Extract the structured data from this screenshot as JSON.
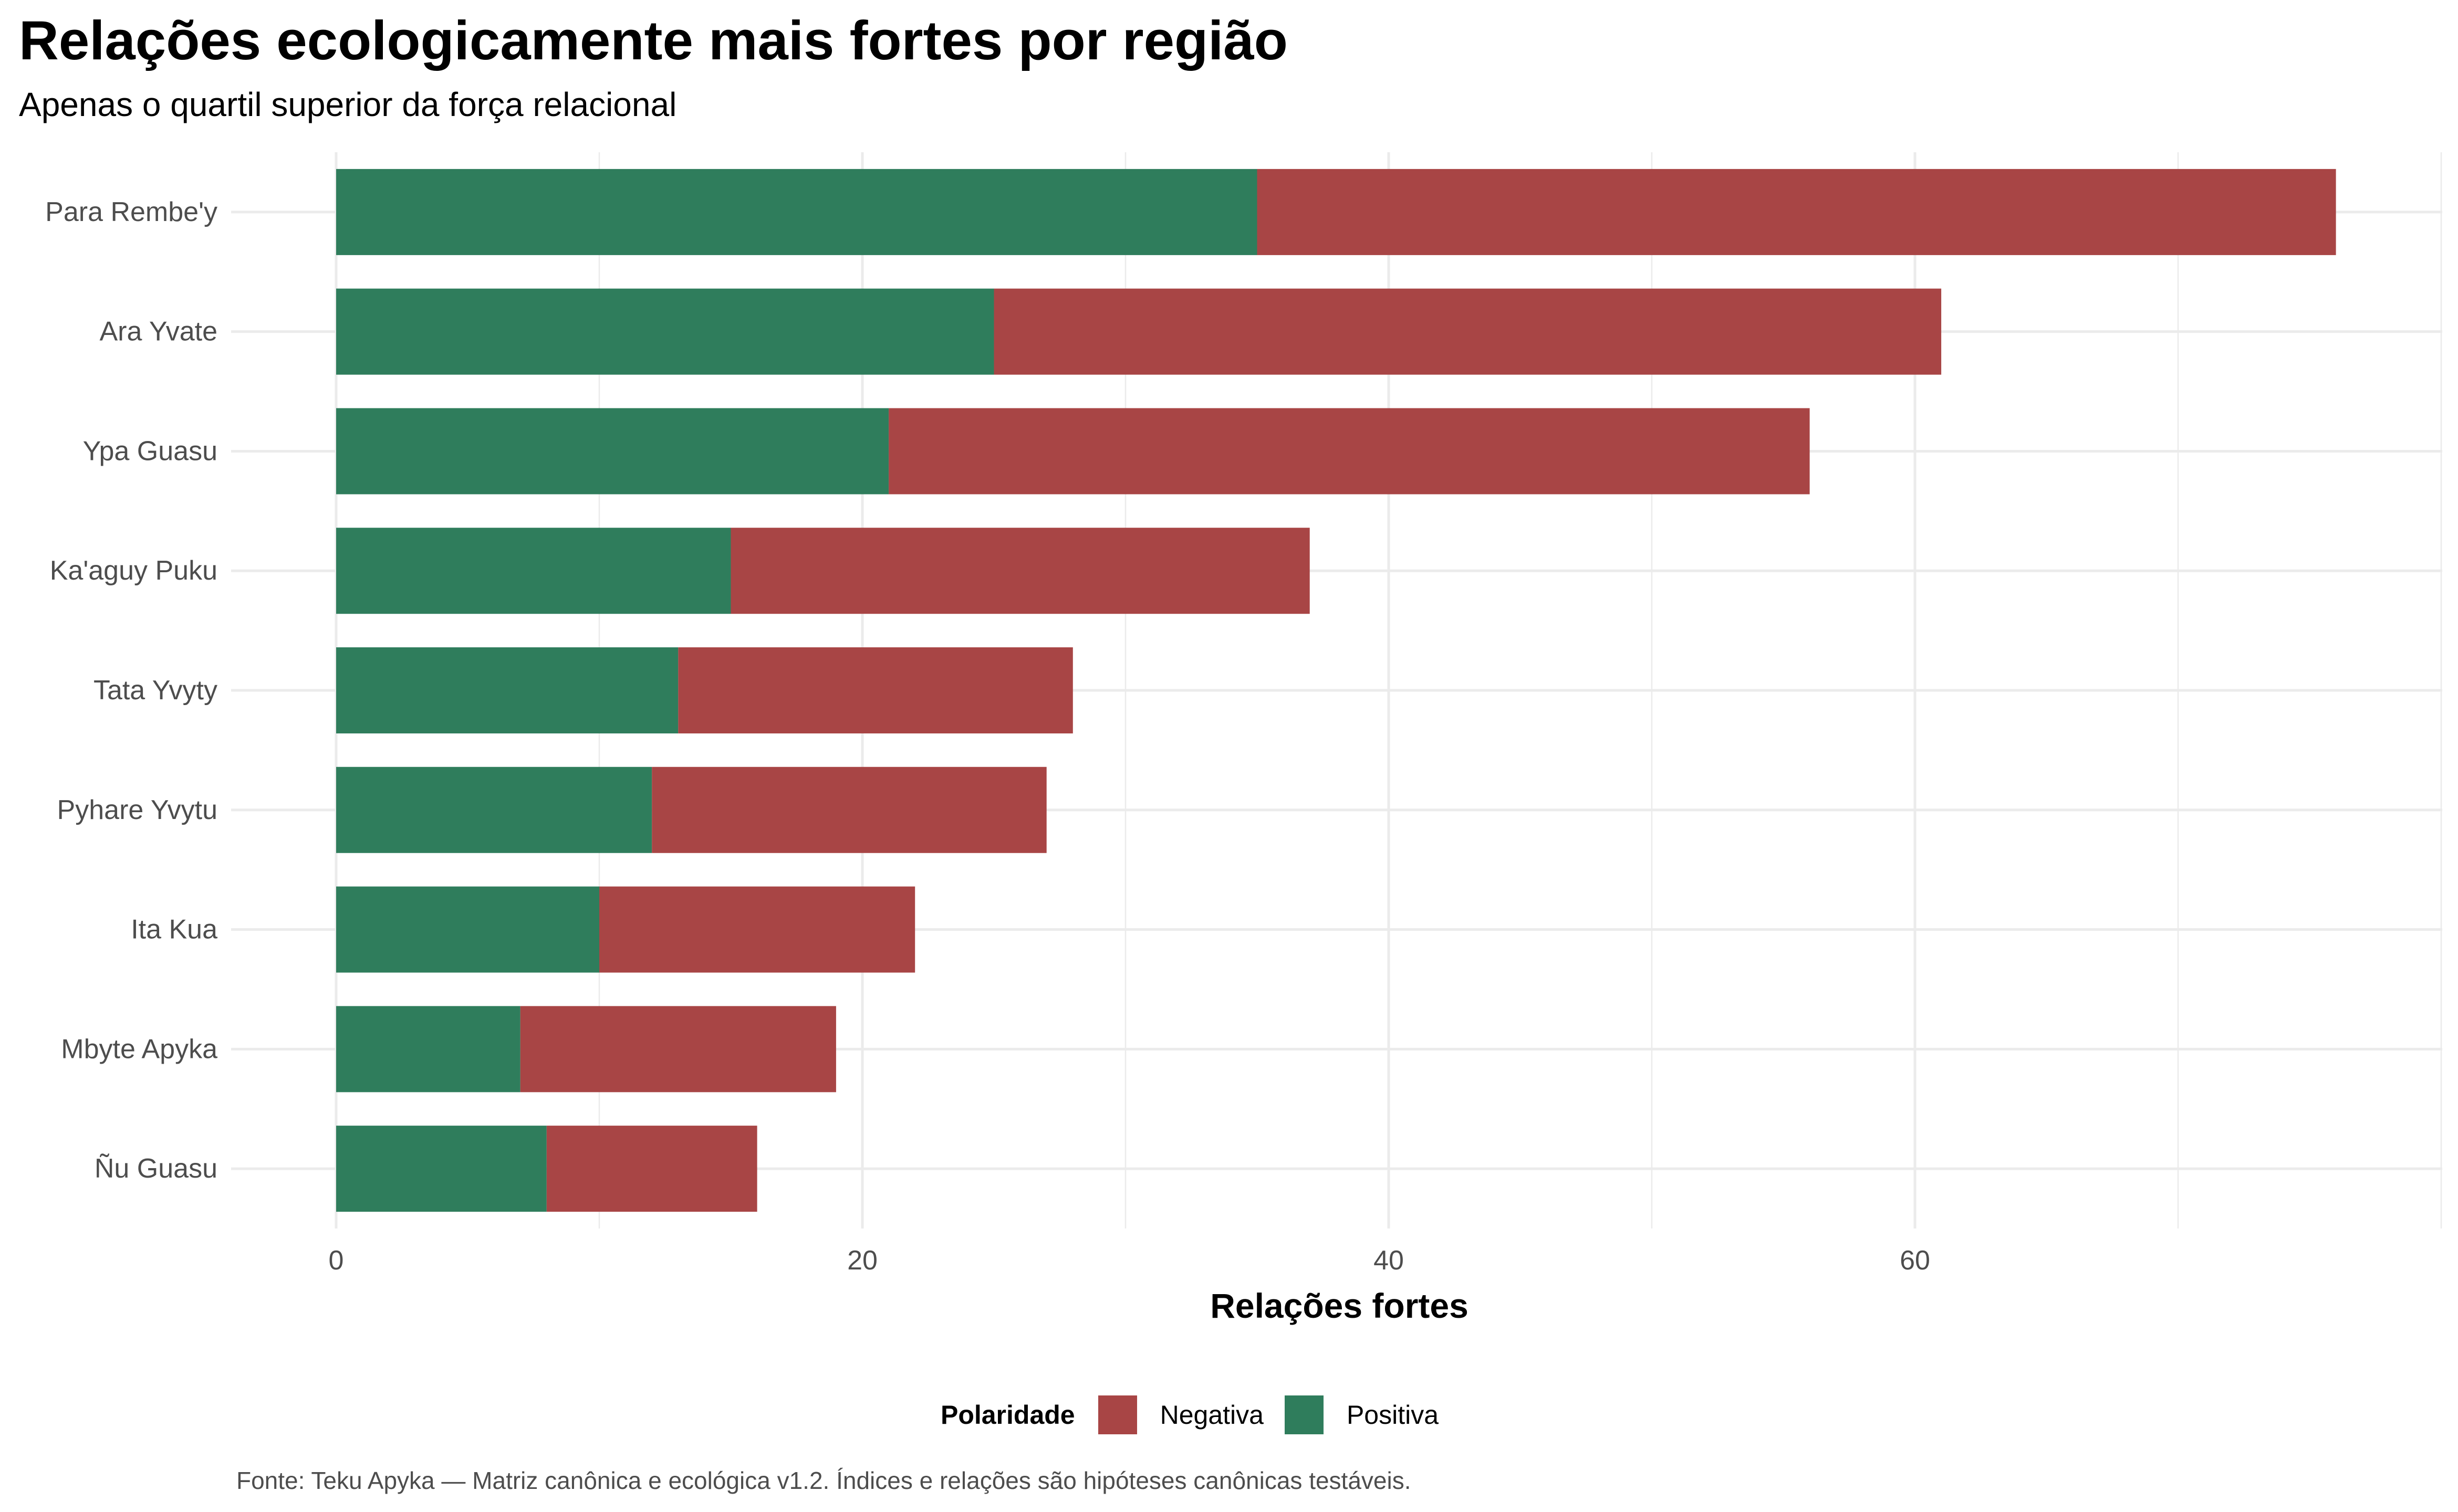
{
  "chart_data": {
    "type": "bar",
    "orientation": "horizontal",
    "stacked": true,
    "title": "Relações ecologicamente mais fortes por região",
    "subtitle": "Apenas o quartil superior da força relacional",
    "xlabel": "Relações fortes",
    "ylabel": "",
    "xlim": [
      0,
      80
    ],
    "x_ticks": [
      0,
      20,
      40,
      60
    ],
    "grid": true,
    "legend_position": "bottom",
    "legend_title": "Polaridade",
    "caption": "Fonte: Teku Apyka — Matriz canônica e ecológica v1.2. Índices e relações são hipóteses canônicas testáveis.",
    "categories": [
      "Para Rembe'y",
      "Ara Yvate",
      "Ypa Guasu",
      "Ka'aguy Puku",
      "Tata Yvyty",
      "Pyhare Yvytu",
      "Ita Kua",
      "Mbyte Apyka",
      "Ñu Guasu"
    ],
    "series": [
      {
        "name": "Positiva",
        "color": "#2f7d5c",
        "values": [
          35,
          25,
          21,
          15,
          13,
          12,
          10,
          7,
          8
        ]
      },
      {
        "name": "Negativa",
        "color": "#a84545",
        "values": [
          41,
          36,
          35,
          22,
          15,
          15,
          12,
          12,
          8
        ]
      }
    ],
    "legend_order": [
      "Negativa",
      "Positiva"
    ]
  },
  "colors": {
    "gridline": "#ebebeb",
    "tick_text": "#4d4d4d",
    "positive": "#2f7d5c",
    "negative": "#a84545"
  }
}
